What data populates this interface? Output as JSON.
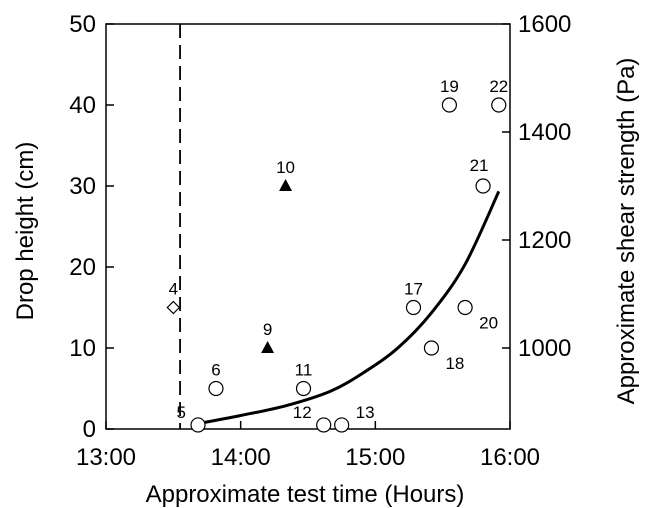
{
  "chart_data": {
    "type": "scatter",
    "title": "",
    "xlabel": "Approximate test time (Hours)",
    "ylabel": "Drop height (cm)",
    "y2label": "Approximate shear strength (Pa)",
    "xlim": [
      "13:00",
      "16:00"
    ],
    "ylim": [
      0,
      50
    ],
    "y2lim": [
      850,
      1600
    ],
    "x_ticks": [
      "13:00",
      "14:00",
      "15:00",
      "16:00"
    ],
    "y_ticks": [
      0,
      10,
      20,
      30,
      40,
      50
    ],
    "y2_ticks": [
      1000,
      1200,
      1400,
      1600
    ],
    "grid": false,
    "reference_line": {
      "x": "13:33",
      "style": "dashed"
    },
    "points": [
      {
        "label": "4",
        "x": "13:30",
        "y": 15,
        "marker": "diamond-open",
        "label_pos": "above"
      },
      {
        "label": "5",
        "x": "13:41",
        "y": 0.5,
        "marker": "circle-open",
        "label_pos": "left"
      },
      {
        "label": "6",
        "x": "13:49",
        "y": 5,
        "marker": "circle-open",
        "label_pos": "above"
      },
      {
        "label": "9",
        "x": "14:12",
        "y": 10,
        "marker": "triangle-filled",
        "label_pos": "above"
      },
      {
        "label": "10",
        "x": "14:20",
        "y": 30,
        "marker": "triangle-filled",
        "label_pos": "above"
      },
      {
        "label": "11",
        "x": "14:28",
        "y": 5,
        "marker": "circle-open",
        "label_pos": "above"
      },
      {
        "label": "12",
        "x": "14:37",
        "y": 0.5,
        "marker": "circle-open",
        "label_pos": "left"
      },
      {
        "label": "13",
        "x": "14:45",
        "y": 0.5,
        "marker": "circle-open",
        "label_pos": "right"
      },
      {
        "label": "17",
        "x": "15:17",
        "y": 15,
        "marker": "circle-open",
        "label_pos": "above"
      },
      {
        "label": "18",
        "x": "15:25",
        "y": 10,
        "marker": "circle-open",
        "label_pos": "below-right"
      },
      {
        "label": "19",
        "x": "15:33",
        "y": 40,
        "marker": "circle-open",
        "label_pos": "above"
      },
      {
        "label": "20",
        "x": "15:40",
        "y": 15,
        "marker": "circle-open",
        "label_pos": "below-right"
      },
      {
        "label": "21",
        "x": "15:48",
        "y": 30,
        "marker": "circle-open",
        "label_pos": "above-left"
      },
      {
        "label": "22",
        "x": "15:55",
        "y": 40,
        "marker": "circle-open",
        "label_pos": "above"
      }
    ],
    "curve": {
      "axis": "right",
      "x": [
        "13:41",
        "14:00",
        "14:20",
        "14:40",
        "14:55",
        "15:10",
        "15:25",
        "15:40",
        "15:55"
      ],
      "y2": [
        860,
        875,
        893,
        920,
        955,
        1000,
        1065,
        1155,
        1290
      ]
    }
  }
}
